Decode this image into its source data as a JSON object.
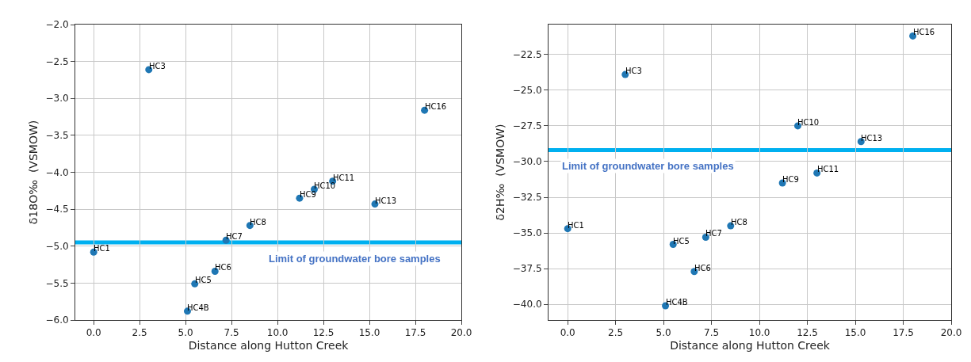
{
  "chart_data": [
    {
      "type": "scatter",
      "xlabel": "Distance along Hutton Creek",
      "ylabel": "δ18O‰  (VSMOW)",
      "xlim": [
        -1,
        20
      ],
      "ylim": [
        -6,
        -2
      ],
      "xticks": [
        {
          "value": 0,
          "label": "0.0"
        },
        {
          "value": 2.5,
          "label": "2.5"
        },
        {
          "value": 5,
          "label": "5.0"
        },
        {
          "value": 7.5,
          "label": "7.5"
        },
        {
          "value": 10,
          "label": "10.0"
        },
        {
          "value": 12.5,
          "label": "12.5"
        },
        {
          "value": 15,
          "label": "15.0"
        },
        {
          "value": 17.5,
          "label": "17.5"
        },
        {
          "value": 20,
          "label": "20.0"
        }
      ],
      "yticks": [
        {
          "value": -6,
          "label": "−6.0"
        },
        {
          "value": -5.5,
          "label": "−5.5"
        },
        {
          "value": -5,
          "label": "−5.0"
        },
        {
          "value": -4.5,
          "label": "−4.5"
        },
        {
          "value": -4,
          "label": "−4.0"
        },
        {
          "value": -3.5,
          "label": "−3.5"
        },
        {
          "value": -3,
          "label": "−3.0"
        },
        {
          "value": -2.5,
          "label": "−2.5"
        },
        {
          "value": -2,
          "label": "−2.0"
        }
      ],
      "grid": true,
      "marker": "circle",
      "x": [
        0,
        3,
        5.1,
        5.5,
        6.6,
        7.2,
        8.5,
        11.2,
        12,
        13,
        15.3,
        18
      ],
      "series": [
        {
          "color": "#1f77b4",
          "values": [
            -5.08,
            -2.61,
            -5.88,
            -5.51,
            -5.34,
            -4.92,
            -4.72,
            -4.35,
            -4.23,
            -4.12,
            -4.43,
            -3.16
          ]
        }
      ],
      "ref_lines": [
        {
          "axis": "y",
          "value": -4.95,
          "label": "Limit of groundwater bore samples",
          "color": "#00b0f0"
        }
      ],
      "annotations": [
        {
          "text": "HC1",
          "x": 0,
          "y": -5.08
        },
        {
          "text": "HC3",
          "x": 3,
          "y": -2.61
        },
        {
          "text": "HC4B",
          "x": 5.1,
          "y": -5.88
        },
        {
          "text": "HC5",
          "x": 5.5,
          "y": -5.51
        },
        {
          "text": "HC6",
          "x": 6.6,
          "y": -5.34
        },
        {
          "text": "HC7",
          "x": 7.2,
          "y": -4.92
        },
        {
          "text": "HC8",
          "x": 8.5,
          "y": -4.72
        },
        {
          "text": "HC9",
          "x": 11.2,
          "y": -4.35
        },
        {
          "text": "HC10",
          "x": 12,
          "y": -4.23
        },
        {
          "text": "HC11",
          "x": 13,
          "y": -4.12
        },
        {
          "text": "HC13",
          "x": 15.3,
          "y": -4.43
        },
        {
          "text": "HC16",
          "x": 18,
          "y": -3.16
        }
      ]
    },
    {
      "type": "scatter",
      "xlabel": "Distance along Hutton Creek",
      "ylabel": "δ2H‰  (VSMOW)",
      "xlim": [
        -1,
        20
      ],
      "ylim": [
        -41.1,
        -20.4
      ],
      "xticks": [
        {
          "value": 0,
          "label": "0.0"
        },
        {
          "value": 2.5,
          "label": "2.5"
        },
        {
          "value": 5,
          "label": "5.0"
        },
        {
          "value": 7.5,
          "label": "7.5"
        },
        {
          "value": 10,
          "label": "10.0"
        },
        {
          "value": 12.5,
          "label": "12.5"
        },
        {
          "value": 15,
          "label": "15.0"
        },
        {
          "value": 17.5,
          "label": "17.5"
        },
        {
          "value": 20,
          "label": "20.0"
        }
      ],
      "yticks": [
        {
          "value": -40,
          "label": "−40.0"
        },
        {
          "value": -37.5,
          "label": "−37.5"
        },
        {
          "value": -35,
          "label": "−35.0"
        },
        {
          "value": -32.5,
          "label": "−32.5"
        },
        {
          "value": -30,
          "label": "−30.0"
        },
        {
          "value": -27.5,
          "label": "−27.5"
        },
        {
          "value": -25,
          "label": "−25.0"
        },
        {
          "value": -22.5,
          "label": "−22.5"
        }
      ],
      "grid": true,
      "marker": "circle",
      "x": [
        0,
        3,
        5.1,
        5.5,
        6.6,
        7.2,
        8.5,
        11.2,
        12,
        13,
        15.3,
        18
      ],
      "series": [
        {
          "color": "#1f77b4",
          "values": [
            -34.7,
            -23.9,
            -40.1,
            -35.8,
            -37.7,
            -35.3,
            -34.5,
            -31.5,
            -27.5,
            -30.8,
            -28.6,
            -21.2
          ]
        }
      ],
      "ref_lines": [
        {
          "axis": "y",
          "value": -29.2,
          "label": "Limit of groundwater bore samples",
          "color": "#00b0f0"
        }
      ],
      "annotations": [
        {
          "text": "HC1",
          "x": 0,
          "y": -34.7
        },
        {
          "text": "HC3",
          "x": 3,
          "y": -23.9
        },
        {
          "text": "HC4B",
          "x": 5.1,
          "y": -40.1
        },
        {
          "text": "HC5",
          "x": 5.5,
          "y": -35.8
        },
        {
          "text": "HC6",
          "x": 6.6,
          "y": -37.7
        },
        {
          "text": "HC7",
          "x": 7.2,
          "y": -35.3
        },
        {
          "text": "HC8",
          "x": 8.5,
          "y": -34.5
        },
        {
          "text": "HC9",
          "x": 11.2,
          "y": -31.5
        },
        {
          "text": "HC10",
          "x": 12,
          "y": -27.5
        },
        {
          "text": "HC11",
          "x": 13,
          "y": -30.8
        },
        {
          "text": "HC13",
          "x": 15.3,
          "y": -28.6
        },
        {
          "text": "HC16",
          "x": 18,
          "y": -21.2
        }
      ]
    }
  ]
}
